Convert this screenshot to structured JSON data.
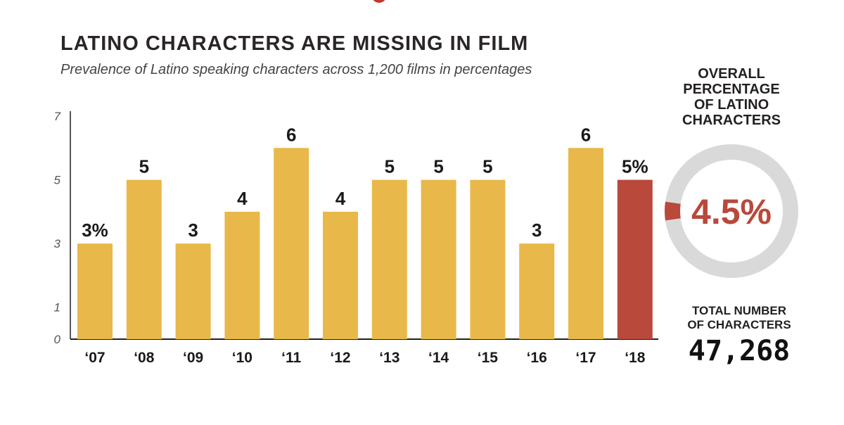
{
  "header": {
    "title": "LATINO CHARACTERS ARE MISSING IN FILM",
    "subtitle": "Prevalence of Latino speaking characters across 1,200 films in percentages"
  },
  "colors": {
    "bar": "#e9b84a",
    "highlight": "#b8493b",
    "donut_track": "#d9d9d9",
    "axis": "#231f20"
  },
  "chart_data": {
    "type": "bar",
    "categories": [
      "‘07",
      "‘08",
      "‘09",
      "‘10",
      "‘11",
      "‘12",
      "‘13",
      "‘14",
      "‘15",
      "‘16",
      "‘17",
      "‘18"
    ],
    "values": [
      3,
      5,
      3,
      4,
      6,
      4,
      5,
      5,
      5,
      3,
      6,
      5
    ],
    "value_labels": [
      "3%",
      "5",
      "3",
      "4",
      "6",
      "4",
      "5",
      "5",
      "5",
      "3",
      "6",
      "5%"
    ],
    "highlight_index": 11,
    "yticks": [
      "0",
      "1",
      "3",
      "5",
      "7"
    ],
    "ylim": [
      0,
      7
    ],
    "grid": false,
    "xlabel": "",
    "ylabel": ""
  },
  "side_panel": {
    "overall_title_lines": [
      "OVERALL",
      "PERCENTAGE",
      "OF LATINO",
      "CHARACTERS"
    ],
    "overall_percentage": 4.5,
    "overall_percentage_label": "4.5%",
    "total_label_lines": [
      "TOTAL NUMBER",
      "OF CHARACTERS"
    ],
    "total_value": "47,268"
  }
}
